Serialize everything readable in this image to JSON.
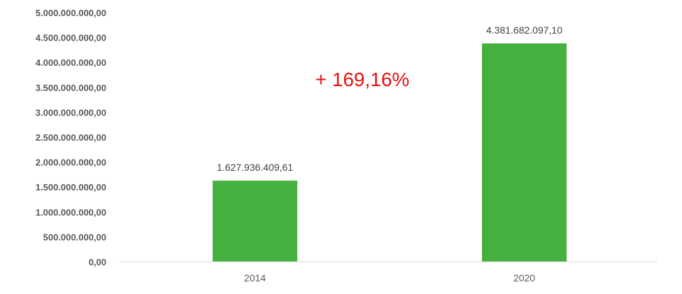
{
  "chart_data": {
    "type": "bar",
    "categories": [
      "2014",
      "2020"
    ],
    "values": [
      1627936409.61,
      4381682097.1
    ],
    "data_labels": [
      "1.627.936.409,61",
      "4.381.682.097,10"
    ],
    "yticks": [
      {
        "value": 0,
        "label": "0,00"
      },
      {
        "value": 500000000,
        "label": "500.000.000,00"
      },
      {
        "value": 1000000000,
        "label": "1.000.000.000,00"
      },
      {
        "value": 1500000000,
        "label": "1.500.000.000,00"
      },
      {
        "value": 2000000000,
        "label": "2.000.000.000,00"
      },
      {
        "value": 2500000000,
        "label": "2.500.000.000,00"
      },
      {
        "value": 3000000000,
        "label": "3.000.000.000,00"
      },
      {
        "value": 3500000000,
        "label": "3.500.000.000,00"
      },
      {
        "value": 4000000000,
        "label": "4.000.000.000,00"
      },
      {
        "value": 4500000000,
        "label": "4.500.000.000,00"
      },
      {
        "value": 5000000000,
        "label": "5.000.000.000,00"
      }
    ],
    "ylim": [
      0,
      5000000000
    ],
    "grid": false,
    "legend": "none",
    "annotation": {
      "text": "+ 169,16%",
      "color": "#e81010"
    },
    "bar_color": "#44b03e"
  }
}
